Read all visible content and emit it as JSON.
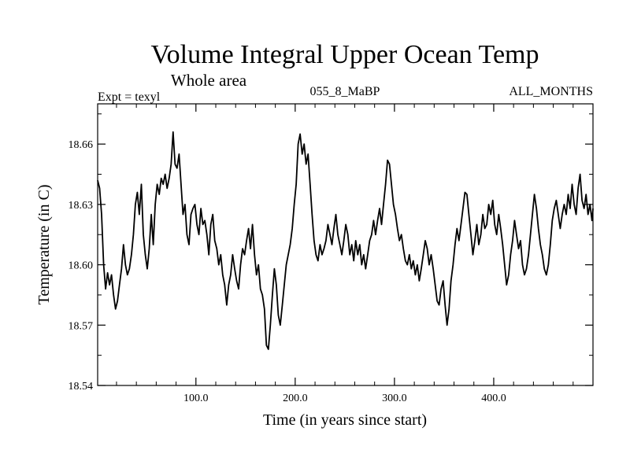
{
  "chart_data": {
    "type": "line",
    "title": "Volume Integral Upper Ocean Temp",
    "subtitle": "Whole area",
    "header_left": "Expt = texyl",
    "header_center": "055_8_MaBP",
    "header_right": "ALL_MONTHS",
    "xlabel": "Time (in years since start)",
    "ylabel": "Temperature (in C)",
    "xlim": [
      1,
      500
    ],
    "ylim": [
      18.54,
      18.68
    ],
    "x_ticks": [
      {
        "value": 100,
        "label": "100.0"
      },
      {
        "value": 200,
        "label": "200.0"
      },
      {
        "value": 300,
        "label": "300.0"
      },
      {
        "value": 400,
        "label": "400.0"
      }
    ],
    "y_ticks": [
      {
        "value": 18.54,
        "label": "18.54"
      },
      {
        "value": 18.57,
        "label": "18.57"
      },
      {
        "value": 18.6,
        "label": "18.60"
      },
      {
        "value": 18.63,
        "label": "18.63"
      },
      {
        "value": 18.66,
        "label": "18.66"
      }
    ],
    "grid": false,
    "series_color": "#000000",
    "series": [
      {
        "points": [
          [
            1,
            18.642
          ],
          [
            3,
            18.638
          ],
          [
            5,
            18.625
          ],
          [
            7,
            18.6
          ],
          [
            9,
            18.588
          ],
          [
            11,
            18.596
          ],
          [
            13,
            18.59
          ],
          [
            15,
            18.595
          ],
          [
            17,
            18.585
          ],
          [
            19,
            18.578
          ],
          [
            21,
            18.582
          ],
          [
            23,
            18.59
          ],
          [
            25,
            18.598
          ],
          [
            27,
            18.61
          ],
          [
            29,
            18.6
          ],
          [
            31,
            18.595
          ],
          [
            33,
            18.598
          ],
          [
            35,
            18.605
          ],
          [
            37,
            18.615
          ],
          [
            39,
            18.63
          ],
          [
            41,
            18.636
          ],
          [
            43,
            18.625
          ],
          [
            45,
            18.64
          ],
          [
            47,
            18.615
          ],
          [
            49,
            18.605
          ],
          [
            51,
            18.598
          ],
          [
            53,
            18.608
          ],
          [
            55,
            18.625
          ],
          [
            57,
            18.61
          ],
          [
            59,
            18.63
          ],
          [
            61,
            18.64
          ],
          [
            63,
            18.635
          ],
          [
            65,
            18.643
          ],
          [
            67,
            18.64
          ],
          [
            69,
            18.645
          ],
          [
            71,
            18.638
          ],
          [
            73,
            18.643
          ],
          [
            75,
            18.65
          ],
          [
            77,
            18.666
          ],
          [
            79,
            18.65
          ],
          [
            81,
            18.648
          ],
          [
            83,
            18.655
          ],
          [
            85,
            18.64
          ],
          [
            87,
            18.625
          ],
          [
            89,
            18.63
          ],
          [
            91,
            18.615
          ],
          [
            93,
            18.61
          ],
          [
            95,
            18.625
          ],
          [
            97,
            18.628
          ],
          [
            99,
            18.63
          ],
          [
            101,
            18.62
          ],
          [
            103,
            18.615
          ],
          [
            105,
            18.628
          ],
          [
            107,
            18.62
          ],
          [
            109,
            18.622
          ],
          [
            111,
            18.615
          ],
          [
            113,
            18.605
          ],
          [
            115,
            18.62
          ],
          [
            117,
            18.625
          ],
          [
            119,
            18.612
          ],
          [
            121,
            18.608
          ],
          [
            123,
            18.6
          ],
          [
            125,
            18.605
          ],
          [
            127,
            18.595
          ],
          [
            129,
            18.59
          ],
          [
            131,
            18.58
          ],
          [
            133,
            18.59
          ],
          [
            135,
            18.595
          ],
          [
            137,
            18.605
          ],
          [
            139,
            18.598
          ],
          [
            141,
            18.592
          ],
          [
            143,
            18.588
          ],
          [
            145,
            18.6
          ],
          [
            147,
            18.608
          ],
          [
            149,
            18.605
          ],
          [
            151,
            18.612
          ],
          [
            153,
            18.618
          ],
          [
            155,
            18.608
          ],
          [
            157,
            18.62
          ],
          [
            159,
            18.605
          ],
          [
            161,
            18.595
          ],
          [
            163,
            18.6
          ],
          [
            165,
            18.588
          ],
          [
            167,
            18.585
          ],
          [
            169,
            18.578
          ],
          [
            171,
            18.56
          ],
          [
            173,
            18.558
          ],
          [
            175,
            18.57
          ],
          [
            177,
            18.585
          ],
          [
            179,
            18.598
          ],
          [
            181,
            18.59
          ],
          [
            183,
            18.575
          ],
          [
            185,
            18.57
          ],
          [
            187,
            18.58
          ],
          [
            189,
            18.59
          ],
          [
            191,
            18.6
          ],
          [
            193,
            18.605
          ],
          [
            195,
            18.61
          ],
          [
            197,
            18.618
          ],
          [
            199,
            18.63
          ],
          [
            201,
            18.64
          ],
          [
            203,
            18.66
          ],
          [
            205,
            18.665
          ],
          [
            207,
            18.655
          ],
          [
            209,
            18.66
          ],
          [
            211,
            18.65
          ],
          [
            213,
            18.655
          ],
          [
            215,
            18.64
          ],
          [
            217,
            18.625
          ],
          [
            219,
            18.612
          ],
          [
            221,
            18.605
          ],
          [
            223,
            18.602
          ],
          [
            225,
            18.61
          ],
          [
            227,
            18.605
          ],
          [
            229,
            18.608
          ],
          [
            231,
            18.612
          ],
          [
            233,
            18.62
          ],
          [
            235,
            18.615
          ],
          [
            237,
            18.61
          ],
          [
            239,
            18.618
          ],
          [
            241,
            18.625
          ],
          [
            243,
            18.615
          ],
          [
            245,
            18.61
          ],
          [
            247,
            18.605
          ],
          [
            249,
            18.612
          ],
          [
            251,
            18.62
          ],
          [
            253,
            18.615
          ],
          [
            255,
            18.605
          ],
          [
            257,
            18.61
          ],
          [
            259,
            18.602
          ],
          [
            261,
            18.612
          ],
          [
            263,
            18.605
          ],
          [
            265,
            18.61
          ],
          [
            267,
            18.6
          ],
          [
            269,
            18.605
          ],
          [
            271,
            18.598
          ],
          [
            273,
            18.605
          ],
          [
            275,
            18.612
          ],
          [
            277,
            18.615
          ],
          [
            279,
            18.622
          ],
          [
            281,
            18.615
          ],
          [
            283,
            18.622
          ],
          [
            285,
            18.628
          ],
          [
            287,
            18.62
          ],
          [
            289,
            18.63
          ],
          [
            291,
            18.64
          ],
          [
            293,
            18.652
          ],
          [
            295,
            18.65
          ],
          [
            297,
            18.64
          ],
          [
            299,
            18.63
          ],
          [
            301,
            18.625
          ],
          [
            303,
            18.618
          ],
          [
            305,
            18.612
          ],
          [
            307,
            18.615
          ],
          [
            309,
            18.608
          ],
          [
            311,
            18.602
          ],
          [
            313,
            18.6
          ],
          [
            315,
            18.605
          ],
          [
            317,
            18.598
          ],
          [
            319,
            18.602
          ],
          [
            321,
            18.595
          ],
          [
            323,
            18.6
          ],
          [
            325,
            18.592
          ],
          [
            327,
            18.598
          ],
          [
            329,
            18.605
          ],
          [
            331,
            18.612
          ],
          [
            333,
            18.608
          ],
          [
            335,
            18.6
          ],
          [
            337,
            18.605
          ],
          [
            339,
            18.598
          ],
          [
            341,
            18.59
          ],
          [
            343,
            18.582
          ],
          [
            345,
            18.58
          ],
          [
            347,
            18.588
          ],
          [
            349,
            18.592
          ],
          [
            351,
            18.58
          ],
          [
            353,
            18.57
          ],
          [
            355,
            18.578
          ],
          [
            357,
            18.592
          ],
          [
            359,
            18.6
          ],
          [
            361,
            18.61
          ],
          [
            363,
            18.618
          ],
          [
            365,
            18.612
          ],
          [
            367,
            18.62
          ],
          [
            369,
            18.628
          ],
          [
            371,
            18.636
          ],
          [
            373,
            18.635
          ],
          [
            375,
            18.625
          ],
          [
            377,
            18.615
          ],
          [
            379,
            18.605
          ],
          [
            381,
            18.612
          ],
          [
            383,
            18.62
          ],
          [
            385,
            18.61
          ],
          [
            387,
            18.615
          ],
          [
            389,
            18.625
          ],
          [
            391,
            18.618
          ],
          [
            393,
            18.62
          ],
          [
            395,
            18.63
          ],
          [
            397,
            18.625
          ],
          [
            399,
            18.632
          ],
          [
            401,
            18.62
          ],
          [
            403,
            18.615
          ],
          [
            405,
            18.625
          ],
          [
            407,
            18.618
          ],
          [
            409,
            18.61
          ],
          [
            411,
            18.6
          ],
          [
            413,
            18.59
          ],
          [
            415,
            18.595
          ],
          [
            417,
            18.605
          ],
          [
            419,
            18.612
          ],
          [
            421,
            18.622
          ],
          [
            423,
            18.615
          ],
          [
            425,
            18.608
          ],
          [
            427,
            18.612
          ],
          [
            429,
            18.6
          ],
          [
            431,
            18.595
          ],
          [
            433,
            18.598
          ],
          [
            435,
            18.605
          ],
          [
            437,
            18.615
          ],
          [
            439,
            18.625
          ],
          [
            441,
            18.635
          ],
          [
            443,
            18.628
          ],
          [
            445,
            18.618
          ],
          [
            447,
            18.61
          ],
          [
            449,
            18.605
          ],
          [
            451,
            18.598
          ],
          [
            453,
            18.595
          ],
          [
            455,
            18.6
          ],
          [
            457,
            18.61
          ],
          [
            459,
            18.622
          ],
          [
            461,
            18.628
          ],
          [
            463,
            18.632
          ],
          [
            465,
            18.625
          ],
          [
            467,
            18.618
          ],
          [
            469,
            18.625
          ],
          [
            471,
            18.63
          ],
          [
            473,
            18.625
          ],
          [
            475,
            18.635
          ],
          [
            477,
            18.628
          ],
          [
            479,
            18.64
          ],
          [
            481,
            18.63
          ],
          [
            483,
            18.625
          ],
          [
            485,
            18.638
          ],
          [
            487,
            18.645
          ],
          [
            489,
            18.632
          ],
          [
            491,
            18.628
          ],
          [
            493,
            18.635
          ],
          [
            495,
            18.625
          ],
          [
            497,
            18.63
          ],
          [
            499,
            18.622
          ],
          [
            500,
            18.628
          ]
        ]
      }
    ]
  }
}
